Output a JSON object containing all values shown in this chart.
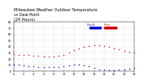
{
  "title": "Milwaukee Weather Outdoor Temperature\nvs Dew Point\n(24 Hours)",
  "title_fontsize": 3.5,
  "background_color": "#ffffff",
  "temp_color": "#cc0000",
  "dew_color": "#0000cc",
  "legend_temp_label": "Temp",
  "legend_dew_label": "Dew Pt",
  "xlim": [
    0,
    24
  ],
  "ylim": [
    0,
    80
  ],
  "hours": [
    0,
    1,
    2,
    3,
    4,
    5,
    6,
    7,
    8,
    9,
    10,
    11,
    12,
    13,
    14,
    15,
    16,
    17,
    18,
    19,
    20,
    21,
    22,
    23,
    24
  ],
  "temp_values": [
    28,
    27,
    27,
    26,
    25,
    25,
    24,
    24,
    24,
    25,
    27,
    30,
    34,
    37,
    39,
    41,
    42,
    42,
    41,
    39,
    37,
    35,
    33,
    31,
    30
  ],
  "dew_values": [
    10,
    10,
    9,
    8,
    8,
    7,
    7,
    6,
    6,
    7,
    8,
    9,
    10,
    10,
    9,
    8,
    5,
    3,
    2,
    1,
    1,
    2,
    3,
    4,
    5
  ],
  "grid_color": "#cccccc",
  "tick_fontsize": 2.5,
  "marker_size": 1.0,
  "xtick_step": 2
}
